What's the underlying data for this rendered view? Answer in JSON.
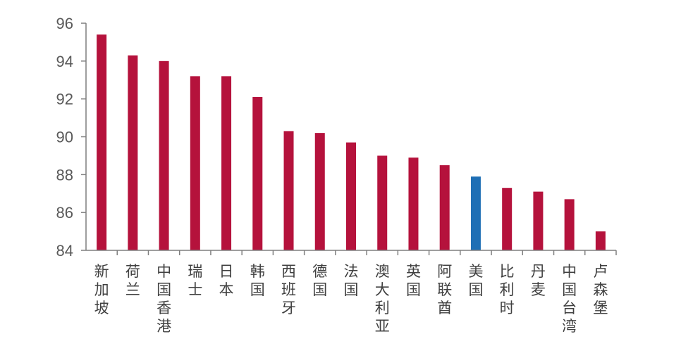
{
  "chart_data": {
    "type": "bar",
    "title": "",
    "xlabel": "",
    "ylabel": "",
    "ylim": [
      84,
      96
    ],
    "yticks": [
      84,
      86,
      88,
      90,
      92,
      94,
      96
    ],
    "grid": false,
    "legend": "none",
    "categories": [
      "新加坡",
      "荷兰",
      "中国香港",
      "瑞士",
      "日本",
      "韩国",
      "西班牙",
      "德国",
      "法国",
      "澳大利亚",
      "英国",
      "阿联酋",
      "美国",
      "比利时",
      "丹麦",
      "中国台湾",
      "卢森堡"
    ],
    "values": [
      95.4,
      94.3,
      94.0,
      93.2,
      93.2,
      92.1,
      90.3,
      90.2,
      89.7,
      89.0,
      88.9,
      88.5,
      87.9,
      87.3,
      87.1,
      86.7,
      85.0
    ],
    "colors": {
      "default": "#b5123c",
      "highlight": "#1e6fb5",
      "axis": "#7f7f7f"
    },
    "highlight_category": "美国"
  }
}
